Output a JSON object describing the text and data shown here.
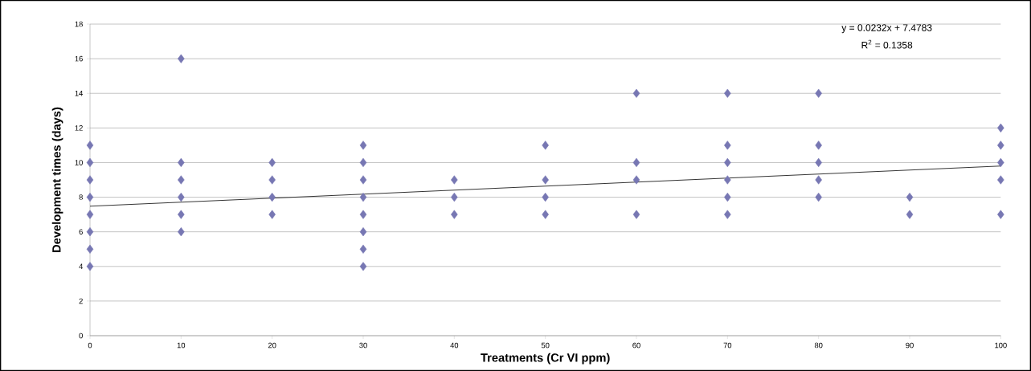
{
  "chart_data": {
    "type": "scatter",
    "xlabel": "Treatments (Cr VI ppm)",
    "ylabel": "Development times (days)",
    "xlim": [
      0,
      100
    ],
    "xticks": [
      0,
      10,
      20,
      30,
      40,
      50,
      60,
      70,
      80,
      90,
      100
    ],
    "ylim": [
      0,
      18
    ],
    "yticks": [
      0,
      2,
      4,
      6,
      8,
      10,
      12,
      14,
      16,
      18
    ],
    "grid": "y",
    "annotations": [
      "y = 0.0232x + 7.4783",
      "R$^{2}$ = 0.1358"
    ],
    "series": [
      {
        "marker": "diamond",
        "color": "#7777b3",
        "x": [
          0,
          0,
          0,
          0,
          0,
          0,
          0,
          0,
          10,
          10,
          10,
          10,
          10,
          10,
          20,
          20,
          20,
          20,
          30,
          30,
          30,
          30,
          30,
          30,
          30,
          30,
          40,
          40,
          40,
          50,
          50,
          50,
          50,
          60,
          60,
          60,
          60,
          70,
          70,
          70,
          70,
          70,
          70,
          80,
          80,
          80,
          80,
          80,
          90,
          90,
          100,
          100,
          100,
          100,
          100
        ],
        "values": [
          4,
          5,
          6,
          7,
          8,
          9,
          10,
          11,
          6,
          7,
          8,
          9,
          10,
          16,
          7,
          8,
          9,
          10,
          4,
          5,
          6,
          7,
          8,
          9,
          10,
          11,
          7,
          8,
          9,
          7,
          8,
          9,
          11,
          7,
          9,
          10,
          14,
          7,
          8,
          9,
          10,
          11,
          14,
          8,
          9,
          10,
          11,
          14,
          7,
          8,
          7,
          9,
          10,
          11,
          12
        ]
      },
      {
        "type": "line",
        "color": "#000000",
        "x": [
          0,
          100
        ],
        "values": [
          7.48,
          9.8
        ]
      }
    ]
  }
}
